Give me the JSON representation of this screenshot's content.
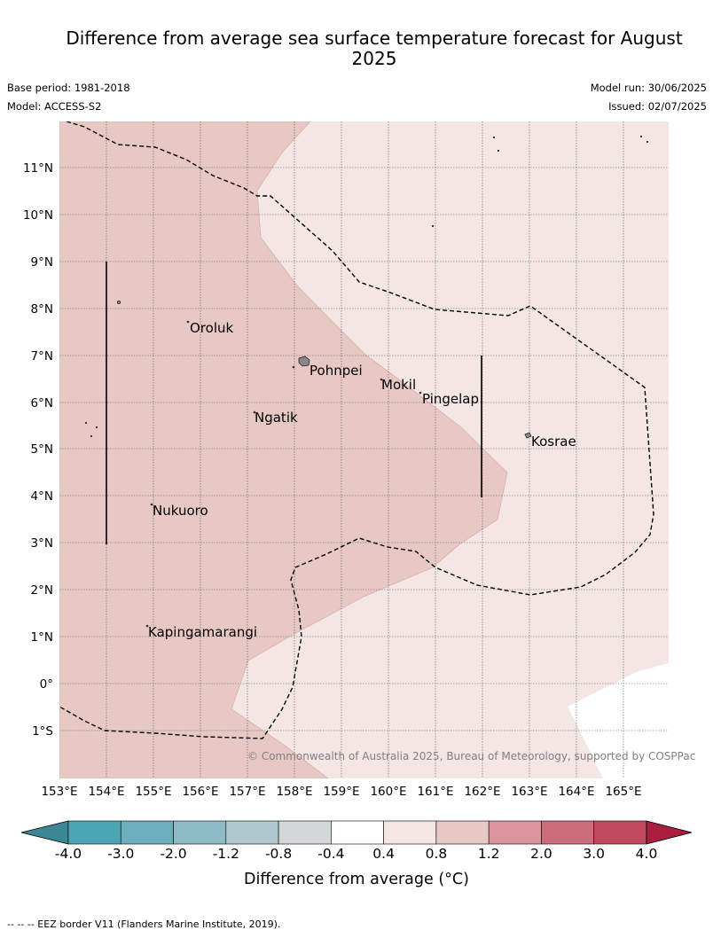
{
  "title": "Difference from average sea surface temperature forecast for August 2025",
  "base_period": "Base period: 1981-2018",
  "model": "Model: ACCESS-S2",
  "model_run": "Model run: 30/06/2025",
  "issued": "Issued: 02/07/2025",
  "copyright": "© Commonwealth of Australia 2025, Bureau of Meteorology, supported by COSPPac",
  "footer": "--  --  -- EEZ border V11 (Flanders Marine Institute, 2019).",
  "map": {
    "lon_labels": [
      "153°E",
      "154°E",
      "155°E",
      "156°E",
      "157°E",
      "158°E",
      "159°E",
      "160°E",
      "161°E",
      "162°E",
      "163°E",
      "164°E",
      "165°E"
    ],
    "lat_labels": [
      "11°N",
      "10°N",
      "9°N",
      "8°N",
      "7°N",
      "6°N",
      "5°N",
      "4°N",
      "3°N",
      "2°N",
      "1°N",
      "0°",
      "1°S"
    ],
    "places": [
      "Oroluk",
      "Pohnpei",
      "Mokil",
      "Pingelap",
      "Ngatik",
      "Kosrae",
      "Nukuoro",
      "Kapingamarangi"
    ]
  },
  "colorbar": {
    "title": "Difference from average (°C)",
    "ticks": [
      "-4.0",
      "-3.0",
      "-2.0",
      "-1.2",
      "-0.8",
      "-0.4",
      "0.4",
      "0.8",
      "1.2",
      "2.0",
      "3.0",
      "4.0"
    ],
    "colors": [
      "#4aa5b5",
      "#6cb0be",
      "#8dbbc6",
      "#adc9cd",
      "#d3d7d8",
      "#ffffff",
      "#f4e6e5",
      "#e8c8c4",
      "#d9959b",
      "#cd6d79",
      "#c04a5c"
    ],
    "under_color": "#3c8794",
    "over_color": "#ab1e3f"
  },
  "legend_colors": {
    "light_anomaly": "#f4e6e5",
    "mid_anomaly": "#e8c8c4",
    "neutral": "#ffffff",
    "eez": "#000000"
  }
}
